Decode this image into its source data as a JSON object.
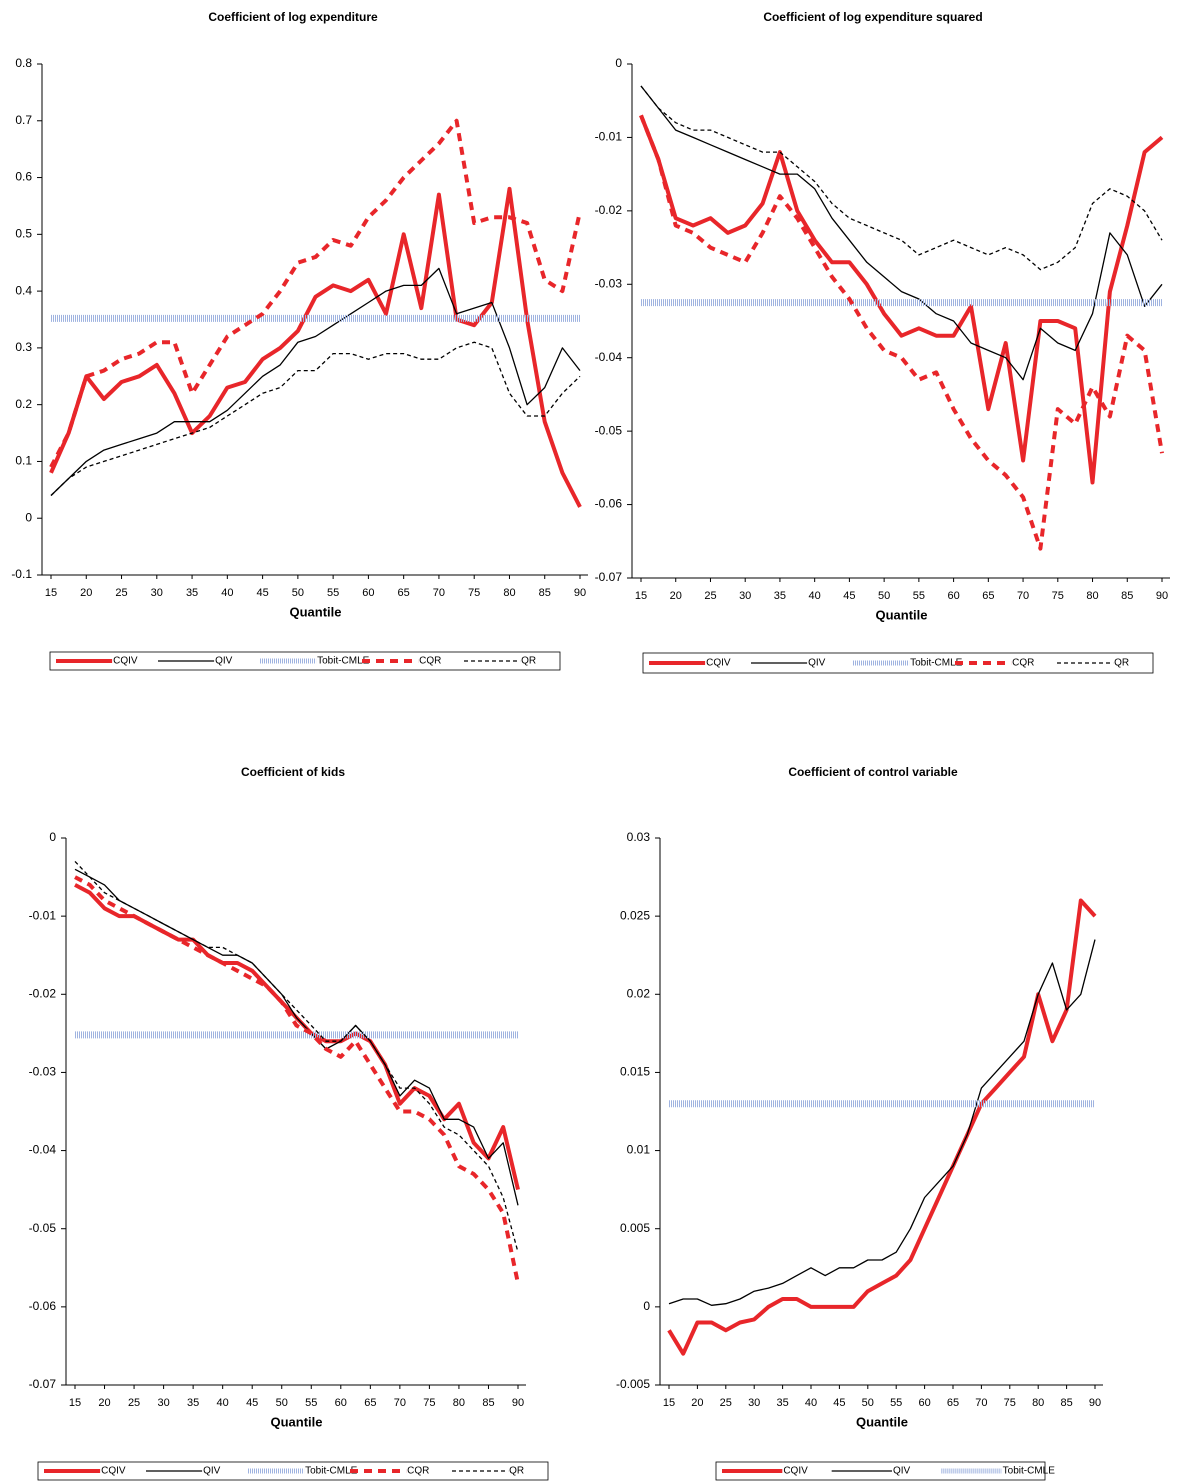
{
  "chart_data": [
    {
      "type": "line",
      "title": "Coefficient of log expenditure",
      "x_label": "Quantile",
      "x": [
        15,
        17.5,
        20,
        22.5,
        25,
        27.5,
        30,
        32.5,
        35,
        37.5,
        40,
        42.5,
        45,
        47.5,
        50,
        52.5,
        55,
        57.5,
        60,
        62.5,
        65,
        67.5,
        70,
        72.5,
        75,
        77.5,
        80,
        82.5,
        85,
        87.5,
        90
      ],
      "xlim": [
        15,
        90
      ],
      "xticks": [
        15,
        20,
        25,
        30,
        35,
        40,
        45,
        50,
        55,
        60,
        65,
        70,
        75,
        80,
        85,
        90
      ],
      "ylim": [
        -0.1,
        0.8
      ],
      "yticks": [
        -0.1,
        0,
        0.1,
        0.2,
        0.3,
        0.4,
        0.5,
        0.6,
        0.7,
        0.8
      ],
      "series": [
        {
          "name": "CQIV",
          "color": "#e8262a",
          "style": "solid-thick",
          "values": [
            0.08,
            0.15,
            0.25,
            0.21,
            0.24,
            0.25,
            0.27,
            0.22,
            0.15,
            0.18,
            0.23,
            0.24,
            0.28,
            0.3,
            0.33,
            0.39,
            0.41,
            0.4,
            0.42,
            0.36,
            0.5,
            0.37,
            0.57,
            0.35,
            0.34,
            0.38,
            0.58,
            0.35,
            0.17,
            0.08,
            0.02
          ]
        },
        {
          "name": "QIV",
          "color": "#000000",
          "style": "solid",
          "values": [
            0.04,
            0.07,
            0.1,
            0.12,
            0.13,
            0.14,
            0.15,
            0.17,
            0.17,
            0.17,
            0.19,
            0.22,
            0.25,
            0.27,
            0.31,
            0.32,
            0.34,
            0.36,
            0.38,
            0.4,
            0.41,
            0.41,
            0.44,
            0.36,
            0.37,
            0.38,
            0.3,
            0.2,
            0.23,
            0.3,
            0.26
          ]
        },
        {
          "name": "Tobit-CMLE",
          "color": "#9fb3e0",
          "style": "band",
          "values": [
            0.352,
            0.352,
            0.352,
            0.352,
            0.352,
            0.352,
            0.352,
            0.352,
            0.352,
            0.352,
            0.352,
            0.352,
            0.352,
            0.352,
            0.352,
            0.352,
            0.352,
            0.352,
            0.352,
            0.352,
            0.352,
            0.352,
            0.352,
            0.352,
            0.352,
            0.352,
            0.352,
            0.352,
            0.352,
            0.352,
            0.352
          ]
        },
        {
          "name": "CQR",
          "color": "#e8262a",
          "style": "dashed-thick",
          "values": [
            0.09,
            0.15,
            0.25,
            0.26,
            0.28,
            0.29,
            0.31,
            0.31,
            0.22,
            0.27,
            0.32,
            0.34,
            0.36,
            0.4,
            0.45,
            0.46,
            0.49,
            0.48,
            0.53,
            0.56,
            0.6,
            0.63,
            0.66,
            0.7,
            0.52,
            0.53,
            0.53,
            0.52,
            0.42,
            0.4,
            0.54
          ]
        },
        {
          "name": "QR",
          "color": "#000000",
          "style": "dashed",
          "values": [
            0.04,
            0.07,
            0.09,
            0.1,
            0.11,
            0.12,
            0.13,
            0.14,
            0.15,
            0.16,
            0.18,
            0.2,
            0.22,
            0.23,
            0.26,
            0.26,
            0.29,
            0.29,
            0.28,
            0.29,
            0.29,
            0.28,
            0.28,
            0.3,
            0.31,
            0.3,
            0.22,
            0.18,
            0.18,
            0.22,
            0.25
          ]
        }
      ]
    },
    {
      "type": "line",
      "title": "Coefficient of log expenditure squared",
      "x_label": "Quantile",
      "x": [
        15,
        17.5,
        20,
        22.5,
        25,
        27.5,
        30,
        32.5,
        35,
        37.5,
        40,
        42.5,
        45,
        47.5,
        50,
        52.5,
        55,
        57.5,
        60,
        62.5,
        65,
        67.5,
        70,
        72.5,
        75,
        77.5,
        80,
        82.5,
        85,
        87.5,
        90
      ],
      "xlim": [
        15,
        90
      ],
      "xticks": [
        15,
        20,
        25,
        30,
        35,
        40,
        45,
        50,
        55,
        60,
        65,
        70,
        75,
        80,
        85,
        90
      ],
      "ylim": [
        -0.07,
        0
      ],
      "yticks": [
        -0.07,
        -0.06,
        -0.05,
        -0.04,
        -0.03,
        -0.02,
        -0.01,
        0
      ],
      "series": [
        {
          "name": "CQIV",
          "color": "#e8262a",
          "style": "solid-thick",
          "values": [
            -0.007,
            -0.013,
            -0.021,
            -0.022,
            -0.021,
            -0.023,
            -0.022,
            -0.019,
            -0.012,
            -0.02,
            -0.024,
            -0.027,
            -0.027,
            -0.03,
            -0.034,
            -0.037,
            -0.036,
            -0.037,
            -0.037,
            -0.033,
            -0.047,
            -0.038,
            -0.054,
            -0.035,
            -0.035,
            -0.036,
            -0.057,
            -0.031,
            -0.022,
            -0.012,
            -0.01
          ]
        },
        {
          "name": "QIV",
          "color": "#000000",
          "style": "solid",
          "values": [
            -0.003,
            -0.006,
            -0.009,
            -0.01,
            -0.011,
            -0.012,
            -0.013,
            -0.014,
            -0.015,
            -0.015,
            -0.017,
            -0.021,
            -0.024,
            -0.027,
            -0.029,
            -0.031,
            -0.032,
            -0.034,
            -0.035,
            -0.038,
            -0.039,
            -0.04,
            -0.043,
            -0.036,
            -0.038,
            -0.039,
            -0.034,
            -0.023,
            -0.026,
            -0.033,
            -0.03
          ]
        },
        {
          "name": "Tobit-CMLE",
          "color": "#9fb3e0",
          "style": "band",
          "values": [
            -0.0325,
            -0.0325,
            -0.0325,
            -0.0325,
            -0.0325,
            -0.0325,
            -0.0325,
            -0.0325,
            -0.0325,
            -0.0325,
            -0.0325,
            -0.0325,
            -0.0325,
            -0.0325,
            -0.0325,
            -0.0325,
            -0.0325,
            -0.0325,
            -0.0325,
            -0.0325,
            -0.0325,
            -0.0325,
            -0.0325,
            -0.0325,
            -0.0325,
            -0.0325,
            -0.0325,
            -0.0325,
            -0.0325,
            -0.0325,
            -0.0325
          ]
        },
        {
          "name": "CQR",
          "color": "#e8262a",
          "style": "dashed-thick",
          "values": [
            -0.007,
            -0.013,
            -0.022,
            -0.023,
            -0.025,
            -0.026,
            -0.027,
            -0.023,
            -0.018,
            -0.021,
            -0.025,
            -0.029,
            -0.032,
            -0.036,
            -0.039,
            -0.04,
            -0.043,
            -0.042,
            -0.047,
            -0.051,
            -0.054,
            -0.056,
            -0.059,
            -0.066,
            -0.047,
            -0.049,
            -0.044,
            -0.048,
            -0.037,
            -0.039,
            -0.053
          ]
        },
        {
          "name": "QR",
          "color": "#000000",
          "style": "dashed",
          "values": [
            -0.003,
            -0.006,
            -0.008,
            -0.009,
            -0.009,
            -0.01,
            -0.011,
            -0.012,
            -0.012,
            -0.014,
            -0.016,
            -0.019,
            -0.021,
            -0.022,
            -0.023,
            -0.024,
            -0.026,
            -0.025,
            -0.024,
            -0.025,
            -0.026,
            -0.025,
            -0.026,
            -0.028,
            -0.027,
            -0.025,
            -0.019,
            -0.017,
            -0.018,
            -0.02,
            -0.024
          ]
        }
      ]
    },
    {
      "type": "line",
      "title": "Coefficient of kids",
      "x_label": "Quantile",
      "x": [
        15,
        17.5,
        20,
        22.5,
        25,
        27.5,
        30,
        32.5,
        35,
        37.5,
        40,
        42.5,
        45,
        47.5,
        50,
        52.5,
        55,
        57.5,
        60,
        62.5,
        65,
        67.5,
        70,
        72.5,
        75,
        77.5,
        80,
        82.5,
        85,
        87.5,
        90
      ],
      "xlim": [
        15,
        90
      ],
      "xticks": [
        15,
        20,
        25,
        30,
        35,
        40,
        45,
        50,
        55,
        60,
        65,
        70,
        75,
        80,
        85,
        90
      ],
      "ylim": [
        -0.07,
        0
      ],
      "yticks": [
        -0.07,
        -0.06,
        -0.05,
        -0.04,
        -0.03,
        -0.02,
        -0.01,
        0
      ],
      "series": [
        {
          "name": "CQIV",
          "color": "#e8262a",
          "style": "solid-thick",
          "values": [
            -0.006,
            -0.007,
            -0.009,
            -0.01,
            -0.01,
            -0.011,
            -0.012,
            -0.013,
            -0.013,
            -0.015,
            -0.016,
            -0.016,
            -0.017,
            -0.019,
            -0.021,
            -0.023,
            -0.025,
            -0.026,
            -0.026,
            -0.025,
            -0.026,
            -0.029,
            -0.034,
            -0.032,
            -0.033,
            -0.036,
            -0.034,
            -0.039,
            -0.041,
            -0.037,
            -0.045
          ]
        },
        {
          "name": "QIV",
          "color": "#000000",
          "style": "solid",
          "values": [
            -0.004,
            -0.005,
            -0.006,
            -0.008,
            -0.009,
            -0.01,
            -0.011,
            -0.012,
            -0.013,
            -0.014,
            -0.015,
            -0.015,
            -0.016,
            -0.018,
            -0.02,
            -0.023,
            -0.025,
            -0.027,
            -0.026,
            -0.024,
            -0.026,
            -0.029,
            -0.033,
            -0.031,
            -0.032,
            -0.036,
            -0.036,
            -0.037,
            -0.041,
            -0.039,
            -0.047
          ]
        },
        {
          "name": "Tobit-CMLE",
          "color": "#9fb3e0",
          "style": "band",
          "values": [
            -0.0252,
            -0.0252,
            -0.0252,
            -0.0252,
            -0.0252,
            -0.0252,
            -0.0252,
            -0.0252,
            -0.0252,
            -0.0252,
            -0.0252,
            -0.0252,
            -0.0252,
            -0.0252,
            -0.0252,
            -0.0252,
            -0.0252,
            -0.0252,
            -0.0252,
            -0.0252,
            -0.0252,
            -0.0252,
            -0.0252,
            -0.0252,
            -0.0252,
            -0.0252,
            -0.0252,
            -0.0252,
            -0.0252,
            -0.0252,
            -0.0252
          ]
        },
        {
          "name": "CQR",
          "color": "#e8262a",
          "style": "dashed-thick",
          "values": [
            -0.005,
            -0.006,
            -0.008,
            -0.009,
            -0.01,
            -0.011,
            -0.012,
            -0.013,
            -0.014,
            -0.015,
            -0.016,
            -0.017,
            -0.018,
            -0.019,
            -0.021,
            -0.024,
            -0.025,
            -0.027,
            -0.028,
            -0.026,
            -0.029,
            -0.032,
            -0.035,
            -0.035,
            -0.036,
            -0.038,
            -0.042,
            -0.043,
            -0.045,
            -0.048,
            -0.057
          ]
        },
        {
          "name": "QR",
          "color": "#000000",
          "style": "dashed",
          "values": [
            -0.003,
            -0.005,
            -0.007,
            -0.008,
            -0.009,
            -0.01,
            -0.011,
            -0.012,
            -0.013,
            -0.014,
            -0.014,
            -0.015,
            -0.016,
            -0.018,
            -0.02,
            -0.022,
            -0.024,
            -0.026,
            -0.026,
            -0.024,
            -0.026,
            -0.029,
            -0.032,
            -0.032,
            -0.034,
            -0.037,
            -0.038,
            -0.04,
            -0.042,
            -0.046,
            -0.053
          ]
        }
      ]
    },
    {
      "type": "line",
      "title": "Coefficient of control variable",
      "x_label": "Quantile",
      "x": [
        15,
        17.5,
        20,
        22.5,
        25,
        27.5,
        30,
        32.5,
        35,
        37.5,
        40,
        42.5,
        45,
        47.5,
        50,
        52.5,
        55,
        57.5,
        60,
        62.5,
        65,
        67.5,
        70,
        72.5,
        75,
        77.5,
        80,
        82.5,
        85,
        87.5,
        90
      ],
      "xlim": [
        15,
        90
      ],
      "xticks": [
        15,
        20,
        25,
        30,
        35,
        40,
        45,
        50,
        55,
        60,
        65,
        70,
        75,
        80,
        85,
        90
      ],
      "ylim": [
        -0.005,
        0.03
      ],
      "yticks": [
        -0.005,
        0,
        0.005,
        0.01,
        0.015,
        0.02,
        0.025,
        0.03
      ],
      "series": [
        {
          "name": "CQIV",
          "color": "#e8262a",
          "style": "solid-thick",
          "values": [
            -0.0015,
            -0.003,
            -0.001,
            -0.001,
            -0.0015,
            -0.001,
            -0.0008,
            0,
            0.0005,
            0.0005,
            0,
            0,
            0,
            0,
            0.001,
            0.0015,
            0.002,
            0.003,
            0.005,
            0.007,
            0.009,
            0.011,
            0.013,
            0.014,
            0.015,
            0.016,
            0.02,
            0.017,
            0.019,
            0.026,
            0.025
          ]
        },
        {
          "name": "QIV",
          "color": "#000000",
          "style": "solid",
          "values": [
            0.0002,
            0.0005,
            0.0005,
            0.0001,
            0.0002,
            0.0005,
            0.001,
            0.0012,
            0.0015,
            0.002,
            0.0025,
            0.002,
            0.0025,
            0.0025,
            0.003,
            0.003,
            0.0035,
            0.005,
            0.007,
            0.008,
            0.009,
            0.011,
            0.014,
            0.015,
            0.016,
            0.017,
            0.02,
            0.022,
            0.019,
            0.02,
            0.0235
          ]
        },
        {
          "name": "Tobit-CMLE",
          "color": "#9fb3e0",
          "style": "band",
          "values": [
            0.013,
            0.013,
            0.013,
            0.013,
            0.013,
            0.013,
            0.013,
            0.013,
            0.013,
            0.013,
            0.013,
            0.013,
            0.013,
            0.013,
            0.013,
            0.013,
            0.013,
            0.013,
            0.013,
            0.013,
            0.013,
            0.013,
            0.013,
            0.013,
            0.013,
            0.013,
            0.013,
            0.013,
            0.013,
            0.013,
            0.013
          ]
        }
      ]
    }
  ]
}
